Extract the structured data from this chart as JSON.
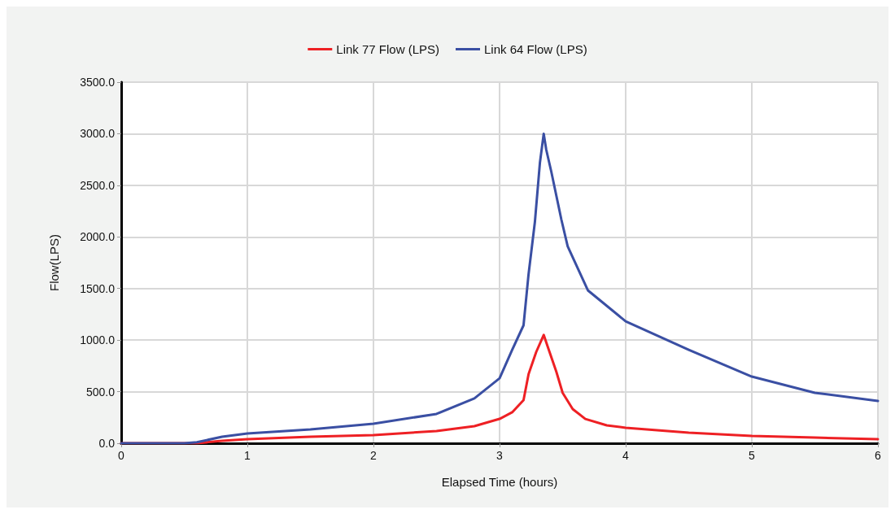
{
  "chart_data": {
    "type": "line",
    "xlabel": "Elapsed Time (hours)",
    "ylabel": "Flow(LPS)",
    "legend": "top",
    "grid": true,
    "marker": "none",
    "line_style": "solid",
    "xlim": [
      0,
      6
    ],
    "xticks": [
      0,
      1,
      2,
      3,
      4,
      5,
      6
    ],
    "ylim": [
      0,
      3500
    ],
    "yticks": [
      {
        "value": 0,
        "label": "0.0"
      },
      {
        "value": 500,
        "label": "500.0"
      },
      {
        "value": 1000,
        "label": "1000.0"
      },
      {
        "value": 1500,
        "label": "1500.0"
      },
      {
        "value": 2000,
        "label": "2000.0"
      },
      {
        "value": 2500,
        "label": "2500.0"
      },
      {
        "value": 3000,
        "label": "3000.0"
      },
      {
        "value": 3500,
        "label": "3500.0"
      }
    ],
    "series": [
      {
        "name": "Link 77 Flow (LPS)",
        "color": "#ee2024",
        "x": [
          0,
          0.5,
          0.6,
          0.8,
          1.0,
          1.5,
          2.0,
          2.5,
          2.8,
          3.0,
          3.1,
          3.19,
          3.23,
          3.29,
          3.35,
          3.39,
          3.45,
          3.5,
          3.58,
          3.68,
          3.85,
          4.0,
          4.5,
          5.0,
          5.5,
          6.0
        ],
        "values": [
          0,
          0,
          0,
          24,
          40,
          63,
          79,
          118,
          166,
          236,
          300,
          418,
          670,
          883,
          1050,
          907,
          694,
          489,
          331,
          236,
          173,
          150,
          102,
          71,
          55,
          40
        ]
      },
      {
        "name": "Link 64 Flow (LPS)",
        "color": "#3a4fa3",
        "x": [
          0,
          0.5,
          0.6,
          0.8,
          1.0,
          1.5,
          2.0,
          2.5,
          2.8,
          3.0,
          3.1,
          3.19,
          3.23,
          3.28,
          3.32,
          3.35,
          3.37,
          3.41,
          3.49,
          3.54,
          3.7,
          4.0,
          4.5,
          5.0,
          5.5,
          6.0
        ],
        "values": [
          0,
          0,
          10,
          63,
          95,
          134,
          190,
          284,
          434,
          630,
          906,
          1143,
          1640,
          2144,
          2720,
          3000,
          2846,
          2633,
          2168,
          1908,
          1482,
          1182,
          906,
          646,
          489,
          410
        ]
      }
    ]
  }
}
